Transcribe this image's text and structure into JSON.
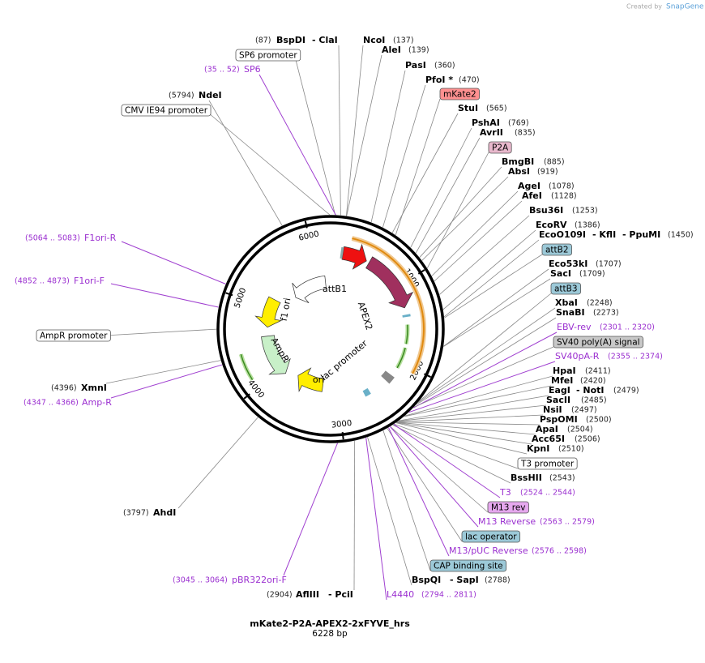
{
  "header": {
    "credit": "Created by",
    "brand": "SnapGene"
  },
  "map": {
    "name": "mKate2-P2A-APEX2-2xFYVE_hrs",
    "size": "6228 bp",
    "ticks": [
      "1000",
      "2000",
      "3000",
      "4000",
      "5000",
      "6000"
    ]
  },
  "inner_labels": [
    "attB1",
    "APEX2",
    "lac promoter",
    "ori",
    "AmpR",
    "f1 ori"
  ],
  "labels": [
    "(87)",
    "BspDI",
    "- ClaI",
    "NcoI",
    "(137)",
    "AleI",
    "(139)",
    "SP6 promoter",
    "PasI",
    "(360)",
    "(35 .. 52)",
    "SP6",
    "PfoI *",
    "(470)",
    "mKate2",
    "(5794)",
    "NdeI",
    "StuI",
    "(565)",
    "CMV IE94 promoter",
    "PshAI",
    "(769)",
    "AvrII",
    "(835)",
    "P2A",
    "BmgBI",
    "(885)",
    "AbsI",
    "(919)",
    "AgeI",
    "(1078)",
    "AfeI",
    "(1128)",
    "Bsu36I",
    "(1253)",
    "EcoRV",
    "(1386)",
    "EcoO109I",
    "- KflI",
    "- PpuMI",
    "(1450)",
    "attB2",
    "Eco53kI",
    "(1707)",
    "SacI",
    "(1709)",
    "attB3",
    "XbaI",
    "(2248)",
    "SnaBI",
    "(2273)",
    "EBV-rev",
    "(2301 .. 2320)",
    "SV40 poly(A) signal",
    "SV40pA-R",
    "(2355 .. 2374)",
    "HpaI",
    "(2411)",
    "MfeI",
    "(2420)",
    "EagI",
    "- NotI",
    "(2479)",
    "SacII",
    "(2485)",
    "NsiI",
    "(2497)",
    "PspOMI",
    "(2500)",
    "ApaI",
    "(2504)",
    "Acc65I",
    "(2506)",
    "KpnI",
    "(2510)",
    "T3 promoter",
    "BssHII",
    "(2543)",
    "T3",
    "(2524 .. 2544)",
    "M13 rev",
    "M13 Reverse",
    "(2563 .. 2579)",
    "lac operator",
    "M13/pUC Reverse",
    "(2576 .. 2598)",
    "CAP binding site",
    "BspQI",
    "- SapI",
    "(2788)",
    "L4440",
    "(2794 .. 2811)",
    "(2904)",
    "AflIII",
    "- PciI",
    "(3045 .. 3064)",
    "pBR322ori-F",
    "(3797)",
    "AhdI",
    "(4347 .. 4366)",
    "Amp-R",
    "(4396)",
    "XmnI",
    "AmpR promoter",
    "(4852 .. 4873)",
    "F1ori-F",
    "(5064 .. 5083)",
    "F1ori-R"
  ]
}
